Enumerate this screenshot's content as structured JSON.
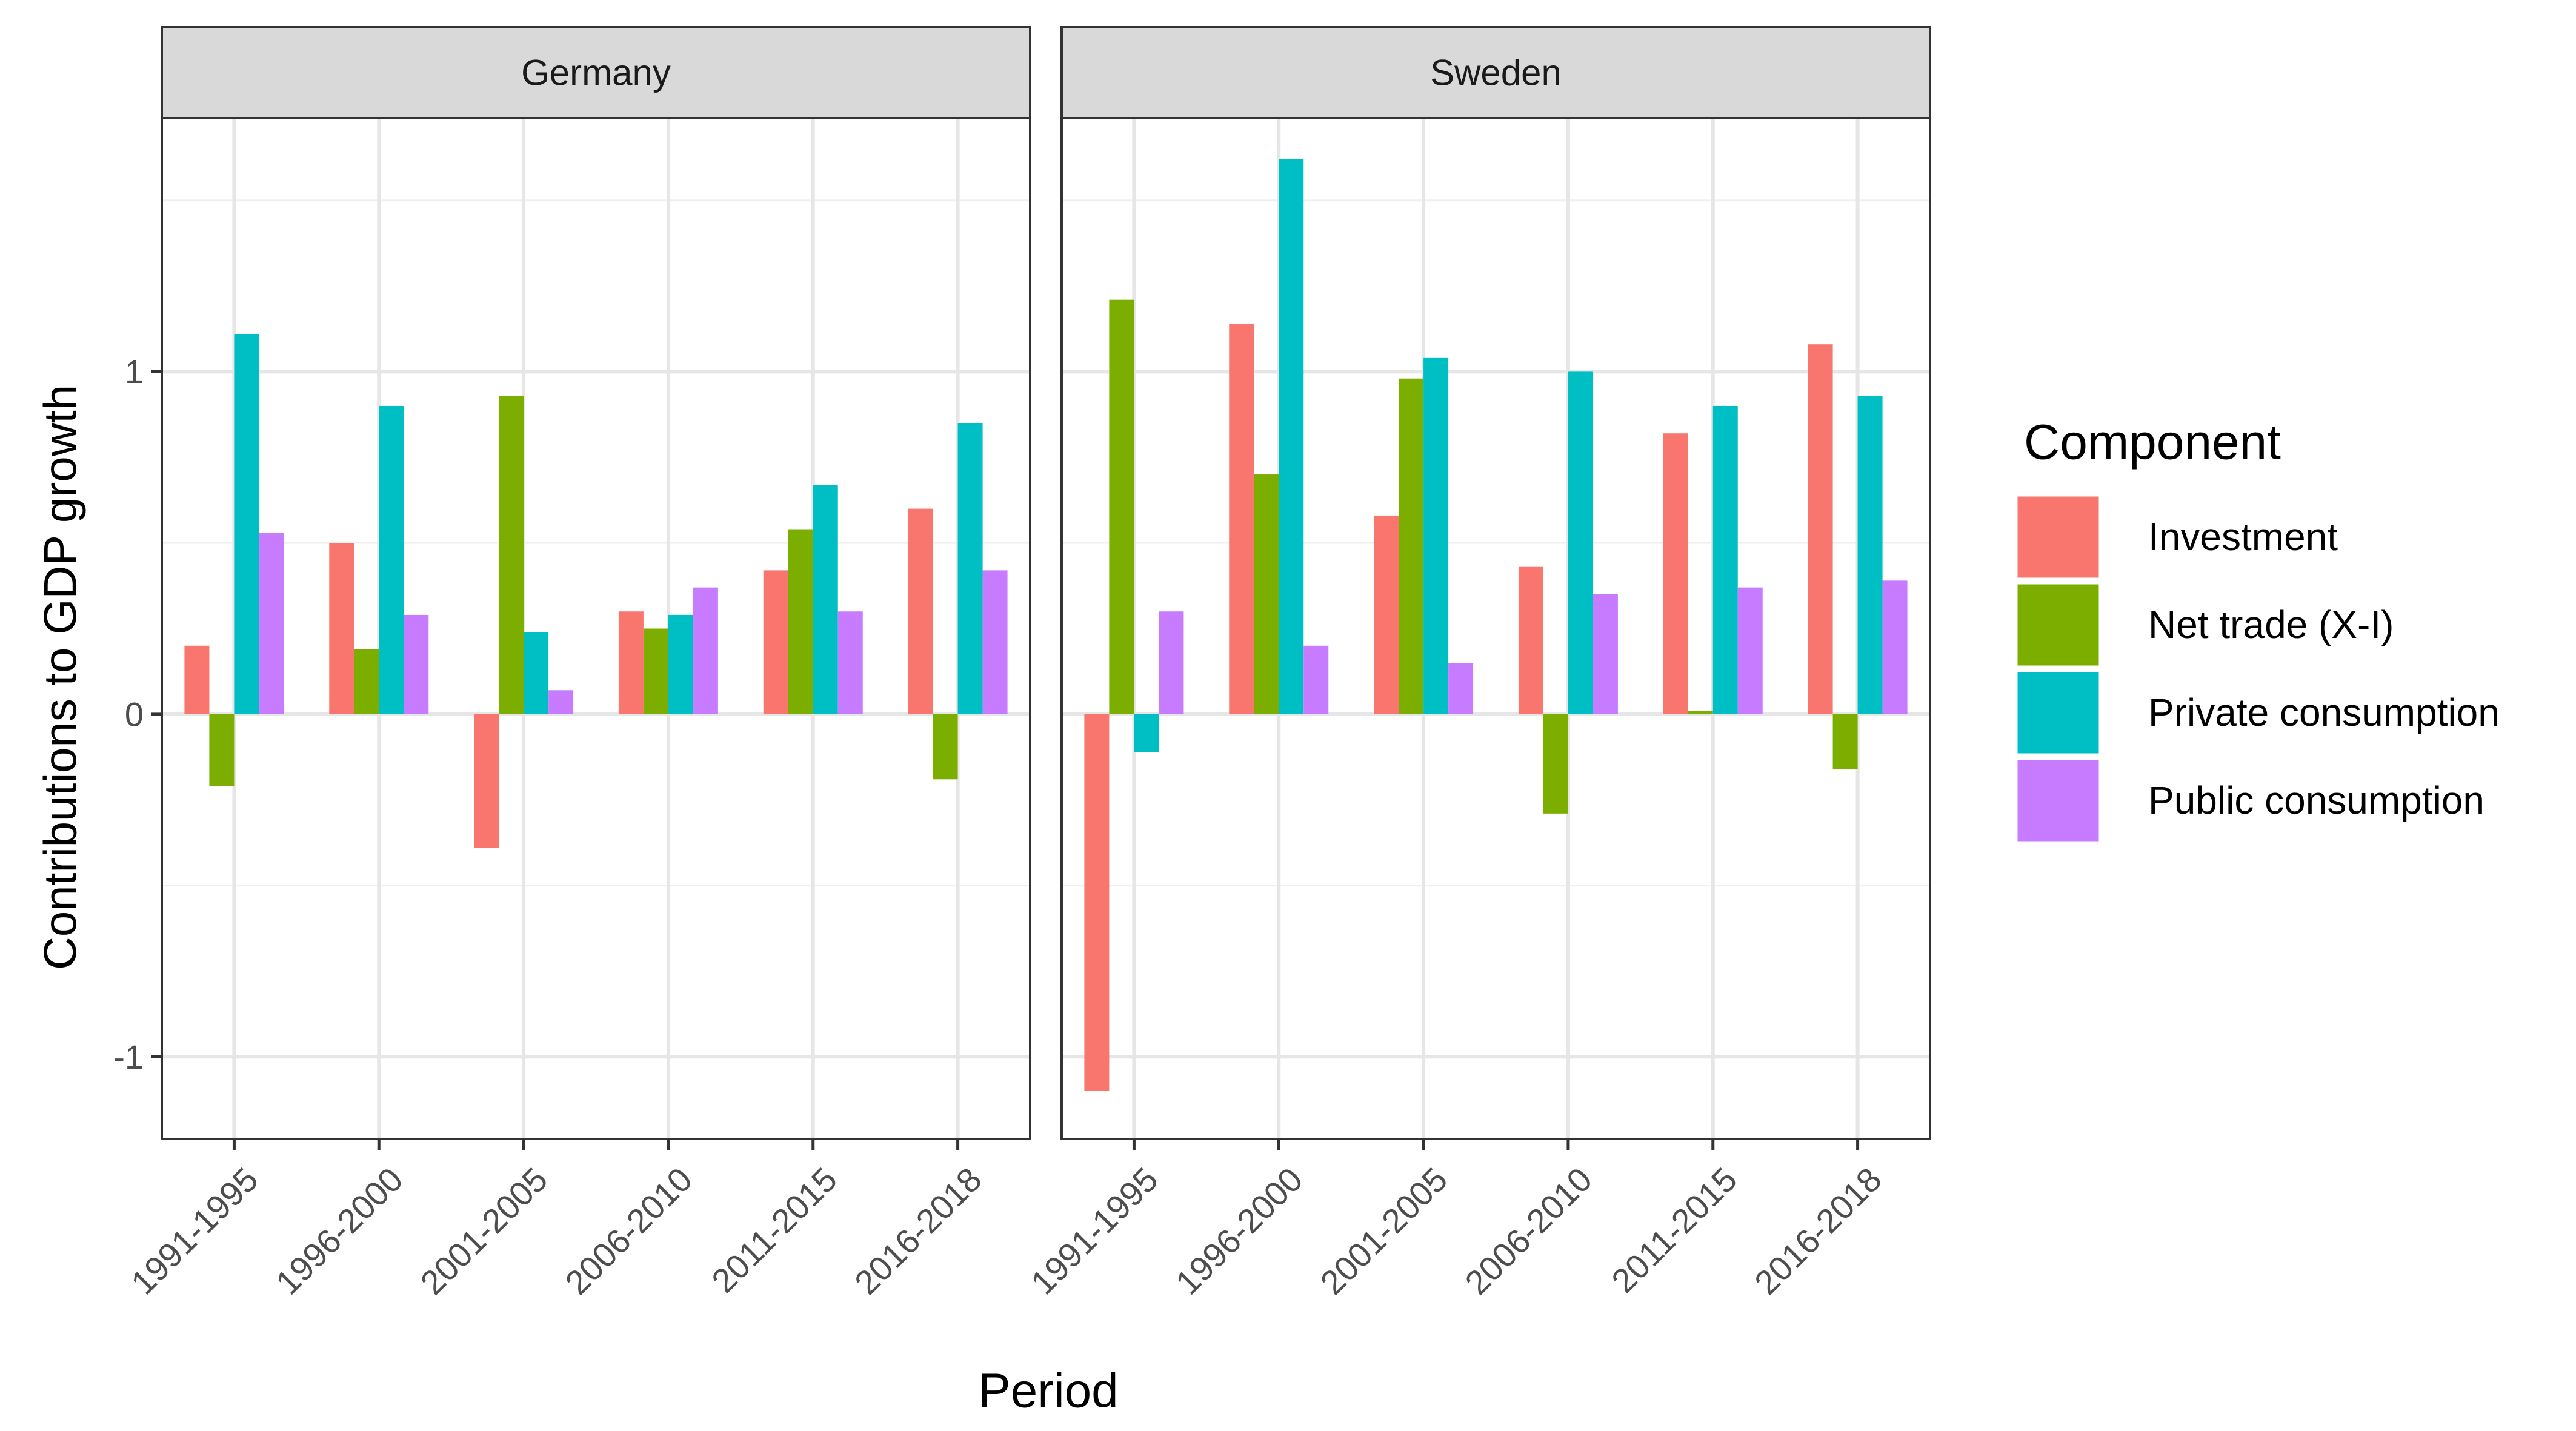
{
  "chart_data": {
    "type": "bar",
    "title": "",
    "xlabel": "Period",
    "ylabel": "Contributions to GDP growth",
    "ylim": [
      -1.24,
      1.74
    ],
    "yticks": [
      -1,
      0,
      1
    ],
    "ytick_labels": [
      "-1",
      "0",
      "1"
    ],
    "grid": true,
    "legend": {
      "title": "Component",
      "position": "right"
    },
    "categories": [
      "1991-1995",
      "1996-2000",
      "2001-2005",
      "2006-2010",
      "2011-2015",
      "2016-2018"
    ],
    "series_names": [
      "Investment",
      "Net trade (X-I)",
      "Private consumption",
      "Public consumption"
    ],
    "colors": {
      "Investment": "#F8766D",
      "Net trade (X-I)": "#7CAE00",
      "Private consumption": "#00BFC4",
      "Public consumption": "#C77CFF"
    },
    "panels": [
      {
        "name": "Germany",
        "series": [
          {
            "name": "Investment",
            "values": [
              0.2,
              0.5,
              -0.39,
              0.3,
              0.42,
              0.6
            ]
          },
          {
            "name": "Net trade (X-I)",
            "values": [
              -0.21,
              0.19,
              0.93,
              0.25,
              0.54,
              -0.19
            ]
          },
          {
            "name": "Private consumption",
            "values": [
              1.11,
              0.9,
              0.24,
              0.29,
              0.67,
              0.85
            ]
          },
          {
            "name": "Public consumption",
            "values": [
              0.53,
              0.29,
              0.07,
              0.37,
              0.3,
              0.42
            ]
          }
        ]
      },
      {
        "name": "Sweden",
        "series": [
          {
            "name": "Investment",
            "values": [
              -1.1,
              1.14,
              0.58,
              0.43,
              0.82,
              1.08
            ]
          },
          {
            "name": "Net trade (X-I)",
            "values": [
              1.21,
              0.7,
              0.98,
              -0.29,
              0.01,
              -0.16
            ]
          },
          {
            "name": "Private consumption",
            "values": [
              -0.11,
              1.62,
              1.04,
              1.0,
              0.9,
              0.93
            ]
          },
          {
            "name": "Public consumption",
            "values": [
              0.3,
              0.2,
              0.15,
              0.35,
              0.37,
              0.39
            ]
          }
        ]
      }
    ]
  }
}
